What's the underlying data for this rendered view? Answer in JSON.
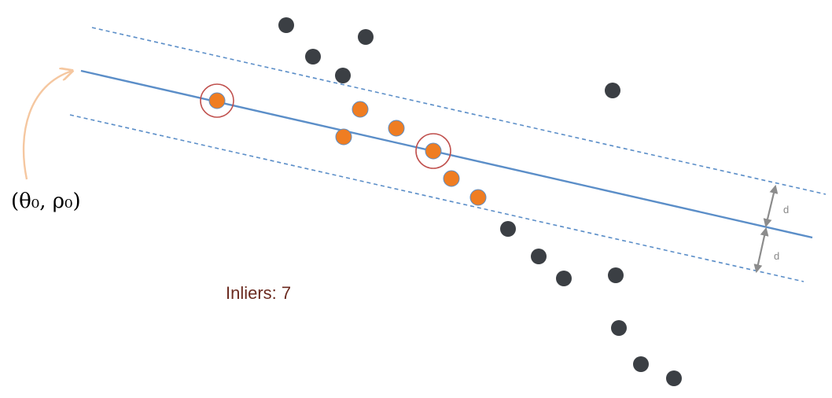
{
  "diagram": {
    "line_label": "(θ₀, ρ₀)",
    "distance_label_top": "d",
    "distance_label_bottom": "d",
    "inliers_text": "Inliers: 7",
    "colors": {
      "fit_line": "#5b8ec8",
      "band_line": "#5b8ec8",
      "inlier": "#ef7d22",
      "outlier": "#3b3f44",
      "sample_circle": "#c0504d",
      "arrow": "#f5c7a0",
      "dimension_arrow": "#8c8c8c",
      "inliers_text": "#6b2a1f"
    }
  }
}
